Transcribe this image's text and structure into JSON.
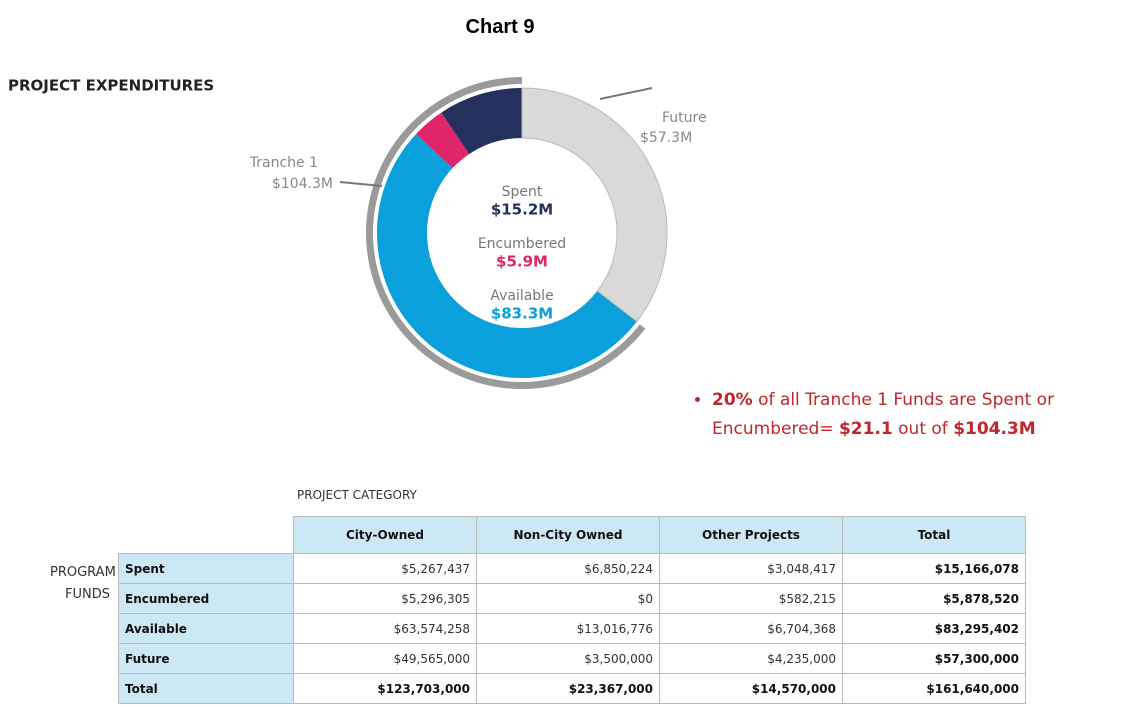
{
  "title": "Chart 9",
  "chart_data": {
    "type": "pie",
    "donut": true,
    "title": "PROJECT EXPENDITURES",
    "categories": [
      "Spent",
      "Encumbered",
      "Available",
      "Future"
    ],
    "values": [
      15.2,
      5.9,
      83.3,
      57.3
    ],
    "value_labels": [
      "$15.2M",
      "$5.9M",
      "$83.3M",
      "$57.3M"
    ],
    "colors": [
      "#24305e",
      "#e0266b",
      "#0aa0dc",
      "#d9d9d9"
    ],
    "group": {
      "name": "Tranche 1",
      "value": 104.3,
      "value_label": "$104.3M",
      "color": "#9a9a9a"
    },
    "annotation": [
      {
        "text": "20%",
        "bold": true
      },
      {
        "text": " of all Tranche 1 Funds are Spent or Encumbered= ",
        "bold": false
      },
      {
        "text": "$21.1",
        "bold": true
      },
      {
        "text": " out of ",
        "bold": false
      },
      {
        "text": "$104.3M",
        "bold": true
      }
    ]
  },
  "table": {
    "column_group": "PROJECT CATEGORY",
    "row_group": "PROGRAM FUNDS",
    "columns": [
      "City-Owned",
      "Non-City Owned",
      "Other Projects",
      "Total"
    ],
    "rows": [
      [
        "Spent",
        "$5,267,437",
        "$6,850,224",
        "$3,048,417",
        "$15,166,078"
      ],
      [
        "Encumbered",
        "$5,296,305",
        "$0",
        "$582,215",
        "$5,878,520"
      ],
      [
        "Available",
        "$63,574,258",
        "$13,016,776",
        "$6,704,368",
        "$83,295,402"
      ],
      [
        "Future",
        "$49,565,000",
        "$3,500,000",
        "$4,235,000",
        "$57,300,000"
      ],
      [
        "Total",
        "$123,703,000",
        "$23,367,000",
        "$14,570,000",
        "$161,640,000"
      ]
    ]
  }
}
